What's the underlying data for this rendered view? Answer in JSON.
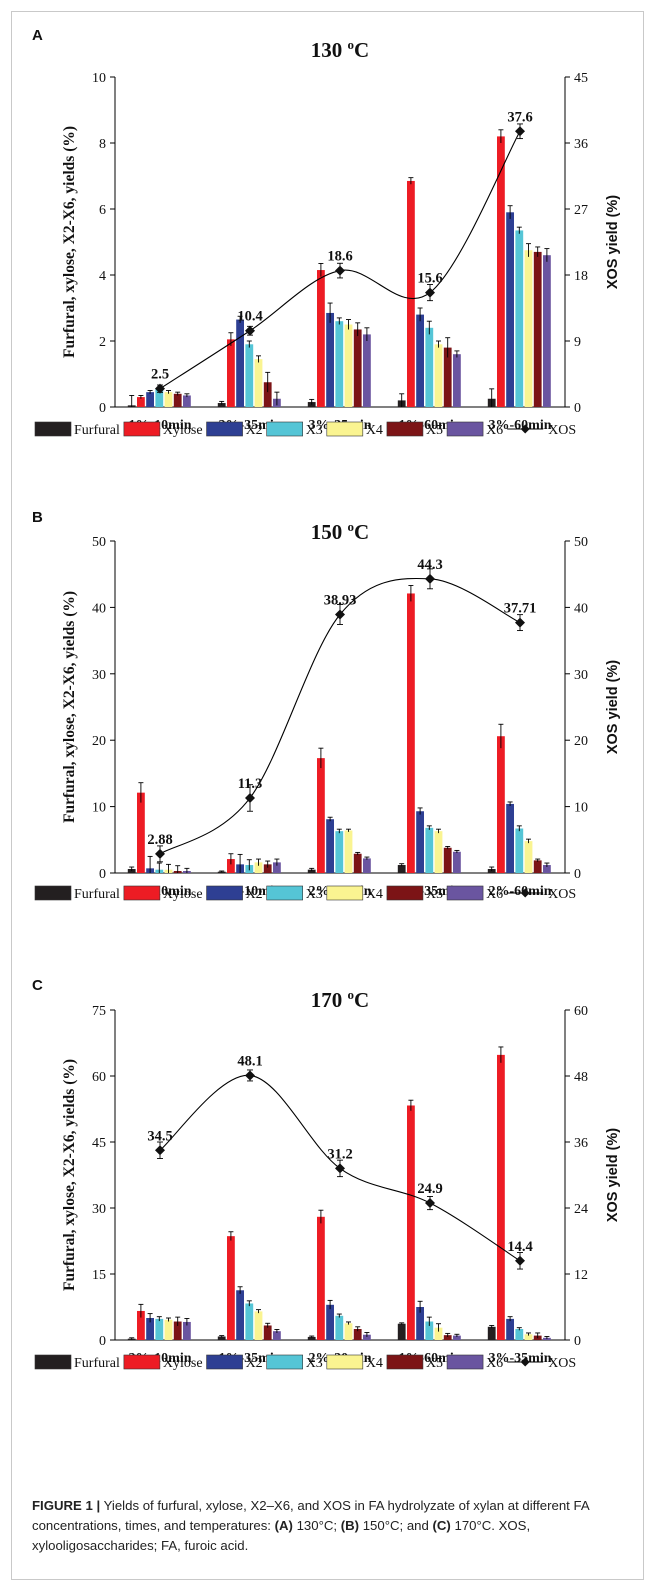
{
  "legend": {
    "items": [
      "Furfural",
      "Xylose",
      "X2",
      "X3",
      "X4",
      "X5",
      "X6",
      "XOS"
    ],
    "colors": [
      "#231f20",
      "#ed1c24",
      "#2e3f93",
      "#55c5d6",
      "#faf491",
      "#7c1416",
      "#6a55a0"
    ],
    "xos_color": "#000000"
  },
  "chart_data": [
    {
      "type": "bar",
      "panel_label": "A",
      "title": "130 °C",
      "ylabel": "Furfural, xylose, X2-X6, yields (%)",
      "y2label": "XOS yield (%)",
      "ylim": [
        0,
        10
      ],
      "yticks": [
        "0",
        "2",
        "4",
        "6",
        "8",
        "10"
      ],
      "y2lim": [
        0,
        45
      ],
      "y2ticks": [
        "0",
        "9",
        "18",
        "27",
        "36",
        "45"
      ],
      "categories": [
        "1%-10min",
        "2%-35min",
        "3%-35min",
        "1%-60min",
        "3%-60min"
      ],
      "series": [
        {
          "name": "Furfural",
          "values": [
            0.05,
            0.12,
            0.15,
            0.2,
            0.25
          ],
          "errors": [
            0.3,
            0.05,
            0.08,
            0.2,
            0.3
          ]
        },
        {
          "name": "Xylose",
          "values": [
            0.3,
            2.05,
            4.15,
            6.85,
            8.2
          ],
          "errors": [
            0.05,
            0.2,
            0.2,
            0.1,
            0.2
          ]
        },
        {
          "name": "X2",
          "values": [
            0.45,
            2.65,
            2.85,
            2.8,
            5.9
          ],
          "errors": [
            0.05,
            0.1,
            0.3,
            0.2,
            0.2
          ]
        },
        {
          "name": "X3",
          "values": [
            0.55,
            1.9,
            2.6,
            2.4,
            5.35
          ],
          "errors": [
            0.05,
            0.1,
            0.1,
            0.2,
            0.1
          ]
        },
        {
          "name": "X4",
          "values": [
            0.45,
            1.45,
            2.5,
            1.9,
            4.75
          ],
          "errors": [
            0.05,
            0.1,
            0.15,
            0.1,
            0.2
          ]
        },
        {
          "name": "X5",
          "values": [
            0.4,
            0.75,
            2.35,
            1.8,
            4.7
          ],
          "errors": [
            0.05,
            0.3,
            0.2,
            0.3,
            0.15
          ]
        },
        {
          "name": "X6",
          "values": [
            0.35,
            0.25,
            2.2,
            1.6,
            4.6
          ],
          "errors": [
            0.05,
            0.2,
            0.2,
            0.1,
            0.2
          ]
        },
        {
          "name": "XOS",
          "axis": "right",
          "kind": "line",
          "values": [
            2.5,
            10.4,
            18.6,
            15.6,
            37.6
          ],
          "labels": [
            "2.5",
            "10.4",
            "18.6",
            "15.6",
            "37.6"
          ],
          "errors": [
            0.5,
            0.6,
            1.0,
            1.1,
            1.0
          ]
        }
      ]
    },
    {
      "type": "bar",
      "panel_label": "B",
      "title": "150 °C",
      "ylabel": "Furfural, xylose, X2-X6, yields (%)",
      "y2label": "XOS yield (%)",
      "ylim": [
        0,
        50
      ],
      "yticks": [
        "0",
        "10",
        "20",
        "30",
        "40",
        "50"
      ],
      "y2lim": [
        0,
        50
      ],
      "y2ticks": [
        "0",
        "10",
        "20",
        "30",
        "40",
        "50"
      ],
      "categories": [
        "1%-10min",
        "3%-10min",
        "2%-35min",
        "3%-35min",
        "2%-60min"
      ],
      "series": [
        {
          "name": "Furfural",
          "values": [
            0.6,
            0.2,
            0.5,
            1.2,
            0.6
          ],
          "errors": [
            0.3,
            0.1,
            0.2,
            0.2,
            0.3
          ]
        },
        {
          "name": "Xylose",
          "values": [
            12.1,
            2.1,
            17.3,
            42.1,
            20.6
          ],
          "errors": [
            1.5,
            0.8,
            1.5,
            1.2,
            1.8
          ]
        },
        {
          "name": "X2",
          "values": [
            0.7,
            1.3,
            8.1,
            9.3,
            10.4
          ],
          "errors": [
            1.8,
            1.5,
            0.3,
            0.5,
            0.3
          ]
        },
        {
          "name": "X3",
          "values": [
            0.5,
            1.2,
            6.3,
            6.8,
            6.7
          ],
          "errors": [
            1.0,
            0.8,
            0.3,
            0.3,
            0.4
          ]
        },
        {
          "name": "X4",
          "values": [
            0.5,
            1.6,
            6.4,
            6.3,
            4.8
          ],
          "errors": [
            0.8,
            0.5,
            0.2,
            0.3,
            0.3
          ]
        },
        {
          "name": "X5",
          "values": [
            0.3,
            1.3,
            2.9,
            3.8,
            1.9
          ],
          "errors": [
            0.8,
            0.5,
            0.2,
            0.2,
            0.2
          ]
        },
        {
          "name": "X6",
          "values": [
            0.3,
            1.6,
            2.2,
            3.2,
            1.2
          ],
          "errors": [
            0.4,
            0.5,
            0.2,
            0.2,
            0.3
          ]
        },
        {
          "name": "XOS",
          "axis": "right",
          "kind": "line",
          "values": [
            2.88,
            11.3,
            38.93,
            44.3,
            37.71
          ],
          "labels": [
            "2.88",
            "11.3",
            "38.93",
            "44.3",
            "37.71"
          ],
          "errors": [
            1.2,
            2.0,
            1.5,
            1.5,
            1.2
          ]
        }
      ]
    },
    {
      "type": "bar",
      "panel_label": "C",
      "title": "170 °C",
      "ylabel": "Furfural, xylose, X2-X6, yields (%)",
      "y2label": "XOS yield (%)",
      "ylim": [
        0,
        75
      ],
      "yticks": [
        "0",
        "15",
        "30",
        "45",
        "60",
        "75"
      ],
      "y2lim": [
        0,
        60
      ],
      "y2ticks": [
        "0",
        "12",
        "24",
        "36",
        "48",
        "60"
      ],
      "categories": [
        "2%-10min",
        "1%-35min",
        "2%-20min",
        "1%-60min",
        "3%-35min"
      ],
      "series": [
        {
          "name": "Furfural",
          "values": [
            0.3,
            0.8,
            0.7,
            3.7,
            3.0
          ],
          "errors": [
            0.2,
            0.2,
            0.2,
            0.2,
            0.3
          ]
        },
        {
          "name": "Xylose",
          "values": [
            6.6,
            23.6,
            28.0,
            53.3,
            64.8
          ],
          "errors": [
            1.5,
            1.0,
            1.5,
            1.2,
            1.8
          ]
        },
        {
          "name": "X2",
          "values": [
            5.0,
            11.3,
            8.0,
            7.5,
            4.8
          ],
          "errors": [
            1.0,
            0.8,
            1.0,
            1.3,
            0.5
          ]
        },
        {
          "name": "X3",
          "values": [
            4.8,
            8.3,
            5.5,
            4.2,
            2.5
          ],
          "errors": [
            0.5,
            0.6,
            0.4,
            1.0,
            0.3
          ]
        },
        {
          "name": "X4",
          "values": [
            4.6,
            6.5,
            3.8,
            2.8,
            1.3
          ],
          "errors": [
            0.4,
            0.4,
            0.3,
            0.9,
            0.3
          ]
        },
        {
          "name": "X5",
          "values": [
            4.2,
            3.3,
            2.5,
            1.1,
            1.0
          ],
          "errors": [
            1.0,
            0.5,
            0.5,
            0.4,
            0.6
          ]
        },
        {
          "name": "X6",
          "values": [
            4.1,
            2.0,
            1.2,
            1.0,
            0.5
          ],
          "errors": [
            0.8,
            0.4,
            0.5,
            0.3,
            0.3
          ]
        },
        {
          "name": "XOS",
          "axis": "right",
          "kind": "line",
          "values": [
            34.5,
            48.1,
            31.2,
            24.9,
            14.4
          ],
          "labels": [
            "34.5",
            "48.1",
            "31.2",
            "24.9",
            "14.4"
          ],
          "errors": [
            1.5,
            1.0,
            1.5,
            1.2,
            1.5
          ]
        }
      ]
    }
  ],
  "caption": {
    "label": "FIGURE 1 |",
    "text": " Yields of furfural, xylose, X2–X6, and XOS in FA hydrolyzate of xylan at different FA concentrations, times, and temperatures: ",
    "a": "(A)",
    "a_text": " 130°C; ",
    "b": "(B)",
    "b_text": " 150°C; and ",
    "c": "(C)",
    "c_text": " 170°C. XOS, xylooligosaccharides; FA, furoic acid."
  }
}
